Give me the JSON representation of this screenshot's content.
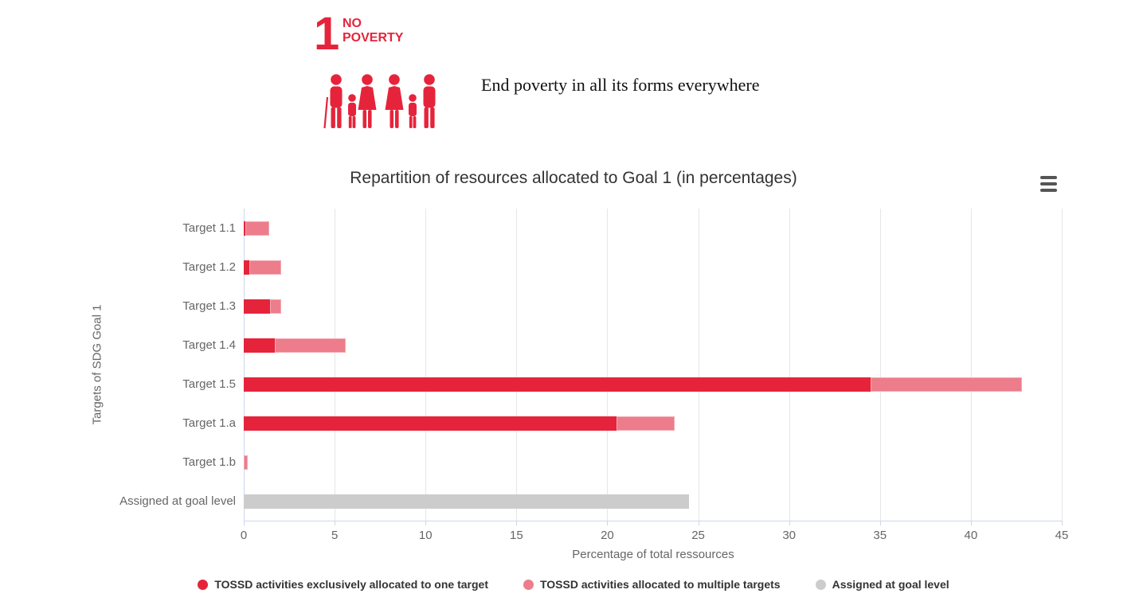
{
  "sdg_header": {
    "goal_number": "1",
    "goal_name_line1": "NO",
    "goal_name_line2": "POVERTY",
    "subtitle": "End poverty in all its forms everywhere",
    "accent_color": "#E5243B"
  },
  "chart": {
    "title": "Repartition of resources allocated to Goal 1 (in percentages)",
    "context_menu_icon": "hamburger-icon"
  },
  "chart_data": {
    "type": "bar",
    "orientation": "horizontal",
    "stacked": true,
    "title": "Repartition of resources allocated to Goal 1 (in percentages)",
    "xlabel": "Percentage of total ressources",
    "ylabel": "Targets of SDG Goal 1",
    "categories": [
      "Target 1.1",
      "Target 1.2",
      "Target 1.3",
      "Target 1.4",
      "Target 1.5",
      "Target 1.a",
      "Target 1.b",
      "Assigned at goal level"
    ],
    "series": [
      {
        "name": "TOSSD activities exclusively allocated to one target",
        "color": "#E5243B",
        "values": [
          0.1,
          0.3,
          1.45,
          1.7,
          34.5,
          20.5,
          0,
          0
        ]
      },
      {
        "name": "TOSSD activities allocated to multiple targets",
        "color": "#ED7D8B",
        "values": [
          1.3,
          1.75,
          0.6,
          3.9,
          8.3,
          3.2,
          0.2,
          0
        ]
      },
      {
        "name": "Assigned at goal level",
        "color": "#CCCCCC",
        "values": [
          0,
          0,
          0,
          0,
          0,
          0,
          0,
          24.5
        ]
      }
    ],
    "totals": [
      1.4,
      2.05,
      2.05,
      5.6,
      42.8,
      23.7,
      0.2,
      24.5
    ],
    "xlim": [
      0,
      45
    ],
    "xticks": [
      0,
      5,
      10,
      15,
      20,
      25,
      30,
      35,
      40,
      45
    ],
    "grid": true,
    "grid_color": "#e6e6e6",
    "axis_line_color": "#ccd6eb",
    "legend_position": "bottom"
  }
}
